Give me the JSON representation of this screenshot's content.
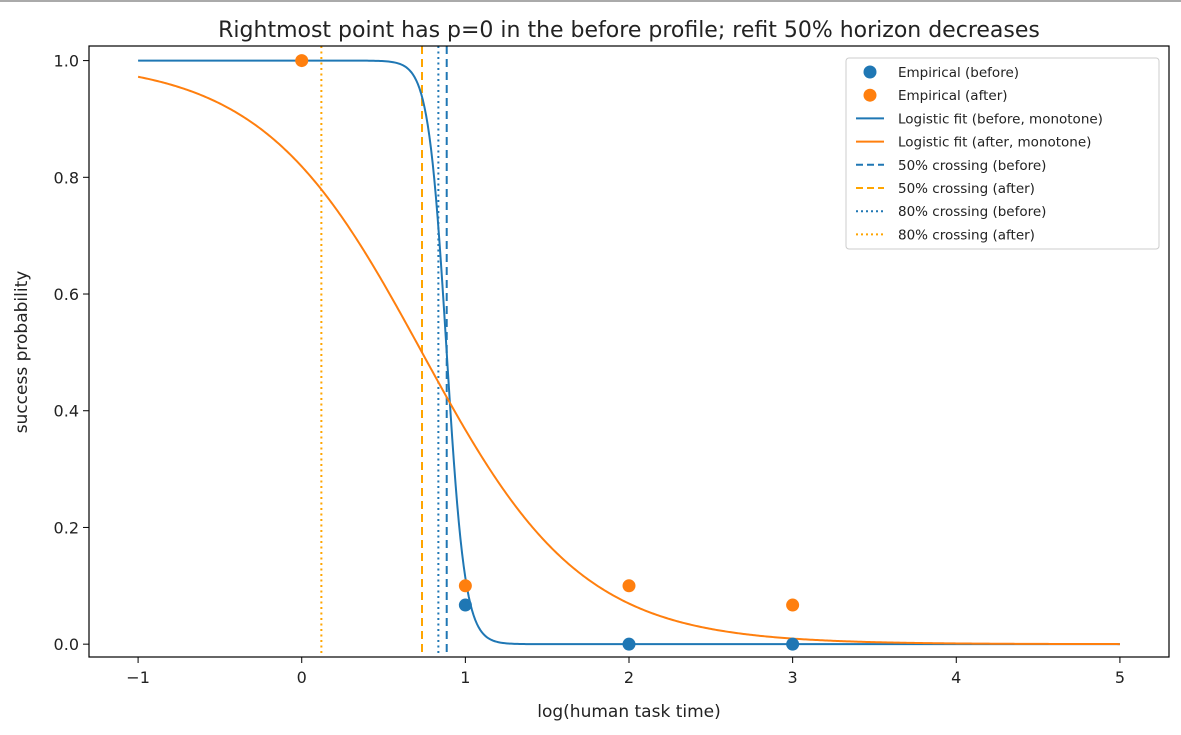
{
  "chart_data": {
    "type": "line",
    "title": "Rightmost point has p=0 in the before profile; refit 50% horizon decreases",
    "xlabel": "log(human task time)",
    "ylabel": "success probability",
    "xlim": [
      -1.3,
      5.3
    ],
    "ylim": [
      -0.022,
      1.025
    ],
    "xticks": [
      -1,
      0,
      1,
      2,
      3,
      4,
      5
    ],
    "xtick_labels": [
      "−1",
      "0",
      "1",
      "2",
      "3",
      "4",
      "5"
    ],
    "yticks": [
      0.0,
      0.2,
      0.4,
      0.6,
      0.8,
      1.0
    ],
    "ytick_labels": [
      "0.0",
      "0.2",
      "0.4",
      "0.6",
      "0.8",
      "1.0"
    ],
    "grid": false,
    "legend_position": "top-right",
    "colors": {
      "before": "#1f77b4",
      "after": "#ff7f0e",
      "after_crossing": "#ffa500"
    },
    "scatter": [
      {
        "name": "Empirical (before)",
        "color": "#1f77b4",
        "x": [
          1,
          2,
          3
        ],
        "y": [
          0.067,
          0.0,
          0.0
        ]
      },
      {
        "name": "Empirical (after)",
        "color": "#ff7f0e",
        "x": [
          0,
          1,
          2,
          3
        ],
        "y": [
          1.0,
          0.1,
          0.1,
          0.067
        ]
      }
    ],
    "curves": [
      {
        "name": "Logistic fit (before, monotone)",
        "color": "#1f77b4",
        "x_range": [
          -1,
          5
        ],
        "midpoint": 0.886,
        "slope": 18.0
      },
      {
        "name": "Logistic fit (after, monotone)",
        "color": "#ff7f0e",
        "x_range": [
          -1,
          5
        ],
        "midpoint": 0.735,
        "slope": 2.05
      }
    ],
    "vlines": [
      {
        "name": "50% crossing (before)",
        "x": 0.886,
        "color": "#1f77b4",
        "style": "dashed"
      },
      {
        "name": "50% crossing (after)",
        "x": 0.735,
        "color": "#ffa500",
        "style": "dashed"
      },
      {
        "name": "80% crossing (before)",
        "x": 0.835,
        "color": "#1f77b4",
        "style": "dotted"
      },
      {
        "name": "80% crossing (after)",
        "x": 0.12,
        "color": "#ffa500",
        "style": "dotted"
      }
    ],
    "legend": [
      {
        "label": "Empirical (before)",
        "kind": "marker",
        "color": "#1f77b4"
      },
      {
        "label": "Empirical (after)",
        "kind": "marker",
        "color": "#ff7f0e"
      },
      {
        "label": "Logistic fit (before, monotone)",
        "kind": "solid",
        "color": "#1f77b4"
      },
      {
        "label": "Logistic fit (after, monotone)",
        "kind": "solid",
        "color": "#ff7f0e"
      },
      {
        "label": "50% crossing (before)",
        "kind": "dashed",
        "color": "#1f77b4"
      },
      {
        "label": "50% crossing (after)",
        "kind": "dashed",
        "color": "#ffa500"
      },
      {
        "label": "80% crossing (before)",
        "kind": "dotted",
        "color": "#1f77b4"
      },
      {
        "label": "80% crossing (after)",
        "kind": "dotted",
        "color": "#ffa500"
      }
    ]
  }
}
